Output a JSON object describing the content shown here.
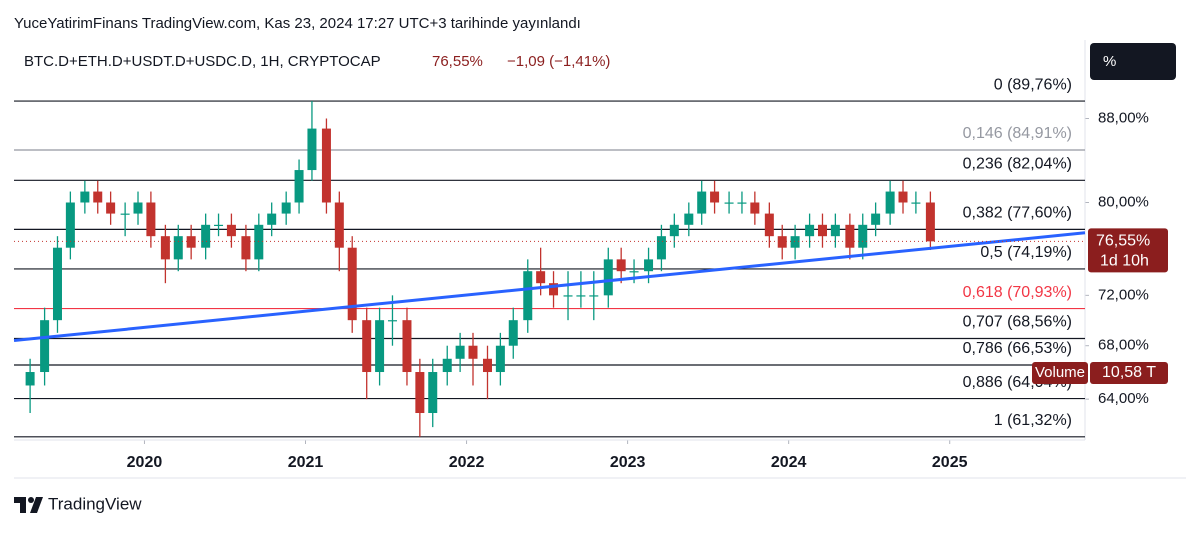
{
  "header": "YuceYatirimFinans TradingView.com, Kas 23, 2024 17:27 UTC+3 tarihinde yayınlandı",
  "symbol": "BTC.D+ETH.D+USDT.D+USDC.D, 1H, CRYPTOCAP",
  "price_text": "76,55%",
  "change_text": "−1,09 (−1,41%)",
  "scale_button": "%",
  "footer": "TradingView",
  "chart_data": {
    "type": "candlestick",
    "log_scale": true,
    "up_color": "#089981",
    "down_color": "#c2332e",
    "xlim": [
      2019.19,
      2025.84
    ],
    "xticks": [
      2020,
      2021,
      2022,
      2023,
      2024,
      2025
    ],
    "ylim": [
      61.1,
      96.2
    ],
    "yticks": [
      {
        "value": 64,
        "label": "64,00%"
      },
      {
        "value": 68,
        "label": "68,00%"
      },
      {
        "value": 72,
        "label": "72,00%"
      },
      {
        "value": 80,
        "label": "80,00%"
      },
      {
        "value": 88,
        "label": "88,00%"
      }
    ],
    "x": [
      2019.29,
      2019.38,
      2019.46,
      2019.54,
      2019.63,
      2019.71,
      2019.79,
      2019.88,
      2019.96,
      2020.04,
      2020.13,
      2020.21,
      2020.29,
      2020.38,
      2020.46,
      2020.54,
      2020.63,
      2020.71,
      2020.79,
      2020.88,
      2020.96,
      2021.04,
      2021.13,
      2021.21,
      2021.29,
      2021.38,
      2021.46,
      2021.54,
      2021.63,
      2021.71,
      2021.79,
      2021.88,
      2021.96,
      2022.04,
      2022.13,
      2022.21,
      2022.29,
      2022.38,
      2022.46,
      2022.54,
      2022.63,
      2022.71,
      2022.79,
      2022.88,
      2022.96,
      2023.04,
      2023.13,
      2023.21,
      2023.29,
      2023.38,
      2023.46,
      2023.54,
      2023.63,
      2023.71,
      2023.79,
      2023.88,
      2023.96,
      2024.04,
      2024.13,
      2024.21,
      2024.29,
      2024.38,
      2024.46,
      2024.54,
      2024.63,
      2024.71,
      2024.79,
      2024.88
    ],
    "open": [
      65,
      66,
      70,
      76,
      80,
      81,
      80,
      79,
      79,
      80,
      77,
      75,
      77,
      76,
      78,
      78,
      77,
      75,
      78,
      79,
      80,
      83,
      87,
      80,
      76,
      70,
      66,
      70,
      70,
      66,
      63,
      66,
      67,
      68,
      67,
      66,
      68,
      70,
      74,
      73,
      72,
      72,
      72,
      72,
      75,
      74,
      74,
      75,
      77,
      78,
      79,
      81,
      80,
      80,
      80,
      79,
      77,
      76,
      77,
      78,
      77,
      78,
      76,
      78,
      79,
      81,
      80,
      80
    ],
    "high": [
      67,
      71,
      77,
      81,
      82,
      82,
      81,
      80,
      81,
      81,
      78,
      78,
      78,
      79,
      79,
      79,
      78,
      79,
      80,
      81,
      84,
      89.76,
      88,
      81,
      77,
      71,
      71,
      72,
      71,
      67,
      67,
      68,
      69,
      69,
      68,
      69,
      71,
      75,
      76,
      74,
      74,
      74,
      74,
      76,
      76,
      75,
      76,
      78,
      79,
      80,
      82,
      82,
      81,
      81,
      81,
      80,
      78,
      78,
      79,
      79,
      79,
      79,
      79,
      80,
      82,
      82,
      81,
      81
    ],
    "low": [
      63,
      65,
      69,
      75,
      79,
      79,
      78,
      77,
      78,
      76,
      73,
      74,
      75,
      75,
      77,
      76,
      74,
      74,
      77,
      78,
      79,
      82,
      79,
      74,
      69,
      64,
      65,
      68,
      65,
      61.32,
      62,
      65,
      66,
      65,
      64,
      65,
      67,
      69,
      72,
      71,
      70,
      71,
      70,
      71,
      73,
      73,
      73,
      74,
      76,
      77,
      78,
      79,
      79,
      79,
      78,
      76,
      75,
      75,
      76,
      76,
      76,
      75,
      75,
      77,
      78,
      79,
      79,
      75.8
    ],
    "close": [
      66,
      70,
      76,
      80,
      81,
      80,
      79,
      79,
      80,
      77,
      75,
      77,
      76,
      78,
      78,
      77,
      75,
      78,
      79,
      80,
      83,
      87,
      80,
      76,
      70,
      66,
      70,
      70,
      66,
      63,
      66,
      67,
      68,
      67,
      66,
      68,
      70,
      74,
      73,
      72,
      72,
      72,
      72,
      75,
      74,
      74,
      75,
      77,
      78,
      79,
      81,
      80,
      80,
      80,
      79,
      77,
      76,
      77,
      78,
      77,
      78,
      76,
      78,
      79,
      81,
      80,
      80,
      76.55
    ],
    "levels": [
      {
        "value": 89.76,
        "label": "0 (89,76%)",
        "color": "#131722"
      },
      {
        "value": 84.91,
        "label": "0,146 (84,91%)",
        "color": "#9598a1"
      },
      {
        "value": 82.04,
        "label": "0,236 (82,04%)",
        "color": "#131722"
      },
      {
        "value": 77.6,
        "label": "0,382 (77,60%)",
        "color": "#131722"
      },
      {
        "value": 74.19,
        "label": "0,5 (74,19%)",
        "color": "#131722"
      },
      {
        "value": 70.93,
        "label": "0,618 (70,93%)",
        "color": "#f23645"
      },
      {
        "value": 68.56,
        "label": "0,707 (68,56%)",
        "color": "#131722"
      },
      {
        "value": 66.53,
        "label": "0,786 (66,53%)",
        "color": "#131722"
      },
      {
        "value": 64.04,
        "label": "0,886 (64,04%)",
        "color": "#131722"
      },
      {
        "value": 61.32,
        "label": "1 (61,32%)",
        "color": "#131722"
      }
    ],
    "trendline": {
      "x": [
        2019.19,
        2025.84
      ],
      "y": [
        68.4,
        77.3
      ],
      "color": "#2962ff"
    },
    "countdown": "1d 10h",
    "volume_label": "Volume",
    "volume_value": "10,58 T"
  }
}
